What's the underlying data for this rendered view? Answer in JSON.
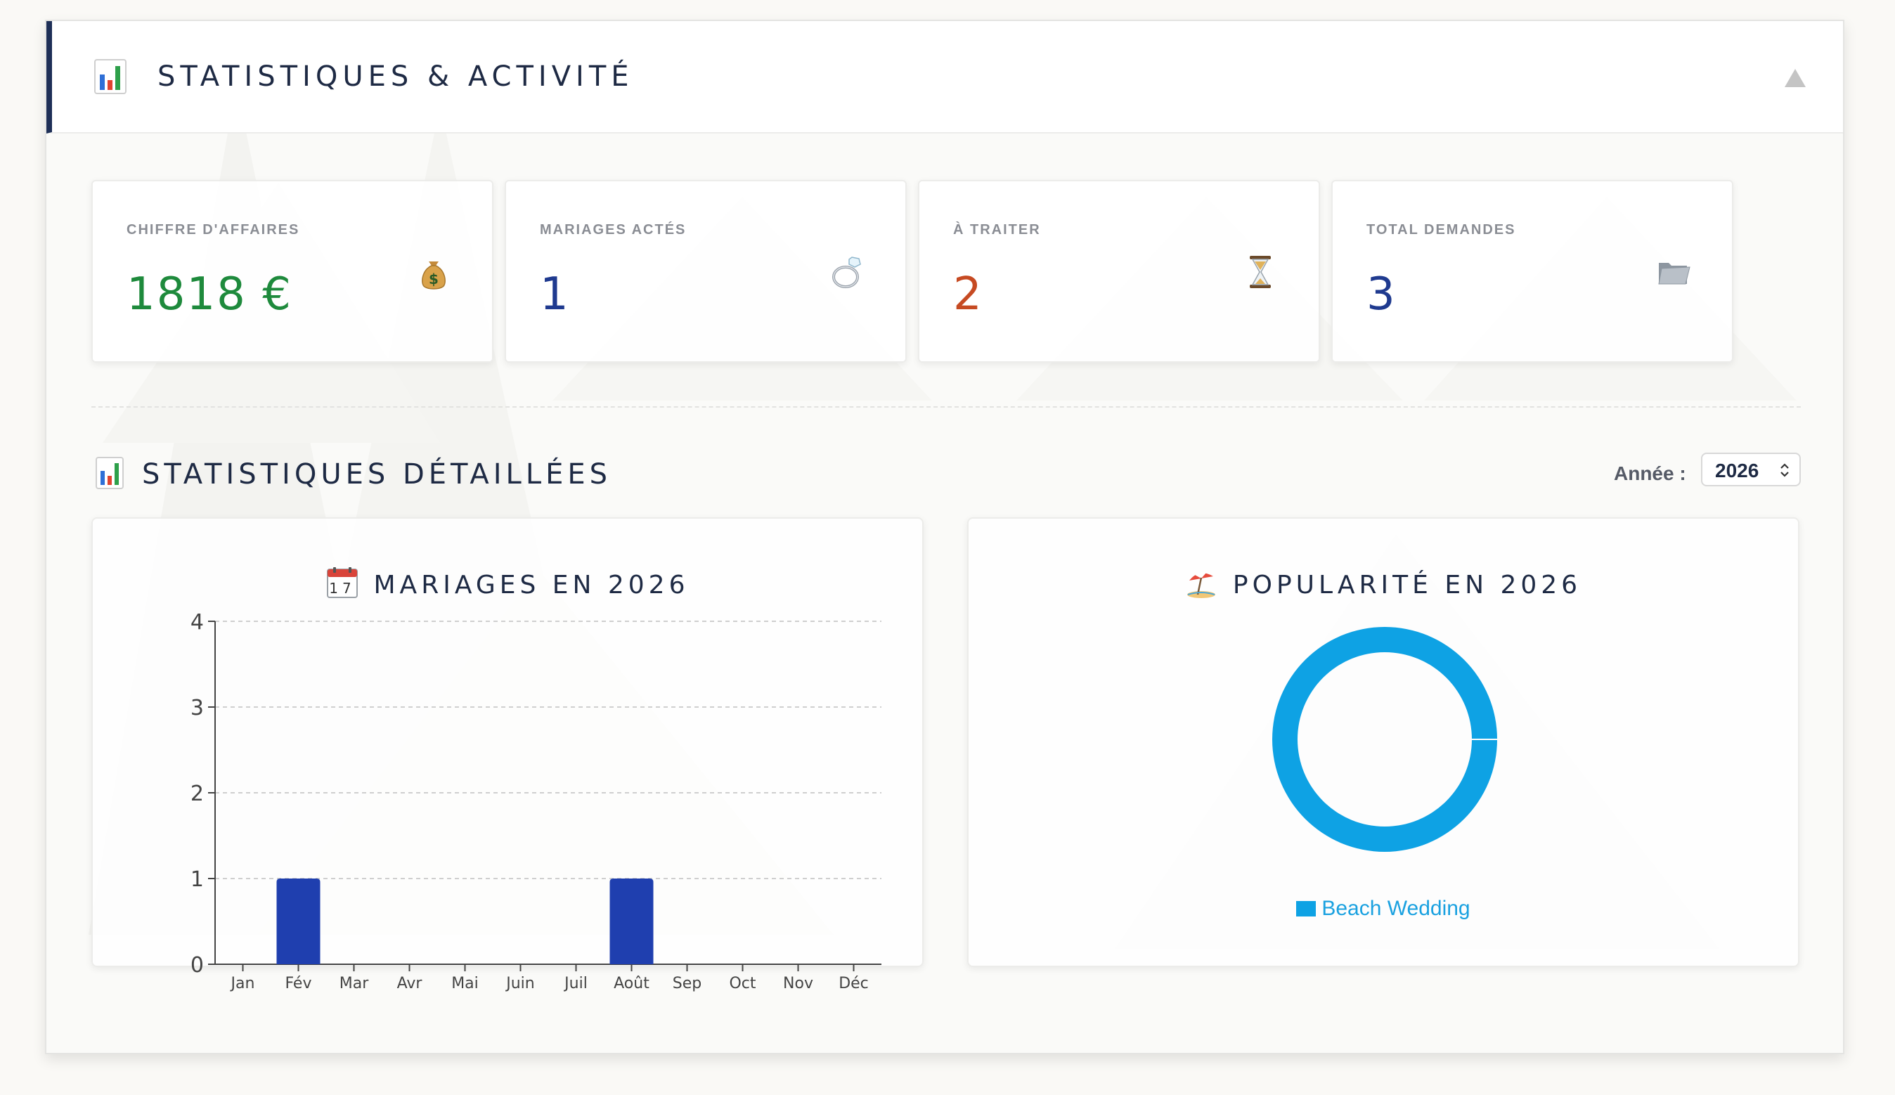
{
  "header": {
    "title": "STATISTIQUES & ACTIVITÉ",
    "icon": "bar-chart-icon",
    "collapse_icon": "triangle-up-icon"
  },
  "kpis": [
    {
      "label": "CHIFFRE D'AFFAIRES",
      "value": "1818 €",
      "icon": "money-bag-icon",
      "color": "#1e8a3c"
    },
    {
      "label": "MARIAGES ACTÉS",
      "value": "1",
      "icon": "ring-icon",
      "color": "#1f3a8f"
    },
    {
      "label": "À TRAITER",
      "value": "2",
      "icon": "hourglass-icon",
      "color": "#c64a22"
    },
    {
      "label": "TOTAL DEMANDES",
      "value": "3",
      "icon": "folder-icon",
      "color": "#1f3a8f"
    }
  ],
  "details": {
    "title": "STATISTIQUES DÉTAILLÉES",
    "year_label": "Année :",
    "year_value": "2026"
  },
  "bar_card": {
    "title": "MARIAGES EN 2026",
    "icon": "calendar-icon"
  },
  "pie_card": {
    "title": "POPULARITÉ EN 2026",
    "icon": "beach-umbrella-icon"
  },
  "chart_data": [
    {
      "type": "bar",
      "title": "MARIAGES EN 2026",
      "categories": [
        "Jan",
        "Fév",
        "Mar",
        "Avr",
        "Mai",
        "Juin",
        "Juil",
        "Août",
        "Sep",
        "Oct",
        "Nov",
        "Déc"
      ],
      "values": [
        0,
        1,
        0,
        0,
        0,
        0,
        0,
        1,
        0,
        0,
        0,
        0
      ],
      "ylim": [
        0,
        4
      ],
      "yticks": [
        "0",
        "1",
        "2",
        "3",
        "4"
      ],
      "grid": true,
      "bar_color": "#1f3faf"
    },
    {
      "type": "pie",
      "title": "POPULARITÉ EN 2026",
      "labels": [
        "Beach Wedding"
      ],
      "values": [
        1
      ],
      "colors": [
        "#0ea2e4"
      ],
      "legend": "bottom"
    }
  ]
}
